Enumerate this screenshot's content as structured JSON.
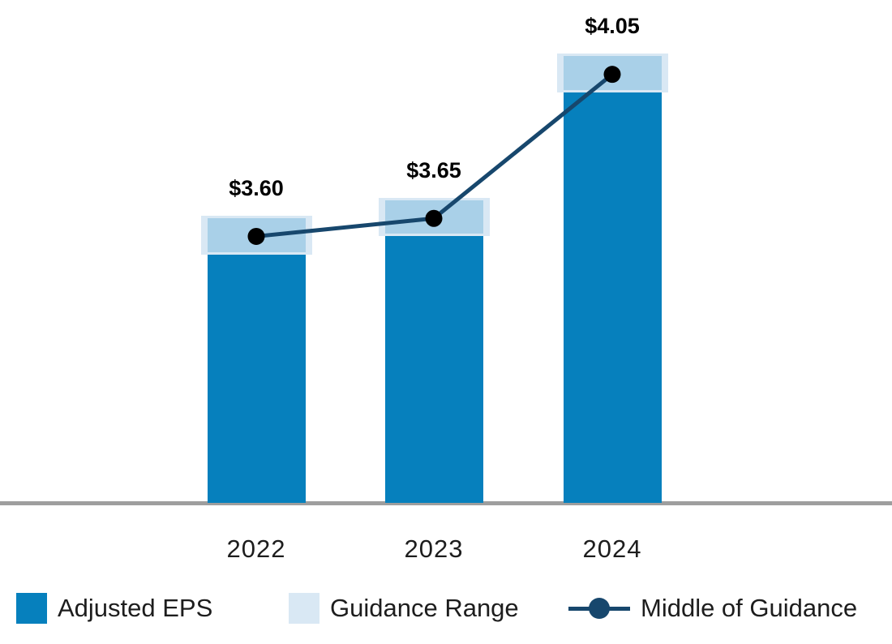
{
  "chart_data": {
    "type": "bar",
    "title": "",
    "xlabel": "",
    "ylabel": "",
    "categories": [
      "2022",
      "2023",
      "2024"
    ],
    "series": [
      {
        "name": "Adjusted EPS",
        "type": "bar",
        "values": [
          3.55,
          3.6,
          4.0
        ]
      },
      {
        "name": "Guidance Range",
        "type": "range",
        "low": [
          3.55,
          3.6,
          4.0
        ],
        "high": [
          3.65,
          3.7,
          4.1
        ]
      },
      {
        "name": "Middle of Guidance",
        "type": "line",
        "values": [
          3.6,
          3.65,
          4.05
        ]
      }
    ],
    "data_labels": [
      "$3.60",
      "$3.65",
      "$4.05"
    ],
    "ylim": [
      2.86,
      4.15
    ],
    "grid": false,
    "y_axis_visible": false,
    "legend_position": "bottom"
  },
  "legend": {
    "items": [
      {
        "label": "Adjusted EPS",
        "swatch": "solid-square"
      },
      {
        "label": "Guidance Range",
        "swatch": "solid-square-light"
      },
      {
        "label": "Middle of Guidance",
        "swatch": "line-with-marker"
      }
    ]
  },
  "colors": {
    "bar": "#0680bd",
    "range_fill": "#a9d0e8",
    "range_halo": "#d9e8f4",
    "line": "#17476d",
    "marker": "#000000",
    "axis": "#9e9e9e",
    "text": "#1d1d1d"
  }
}
